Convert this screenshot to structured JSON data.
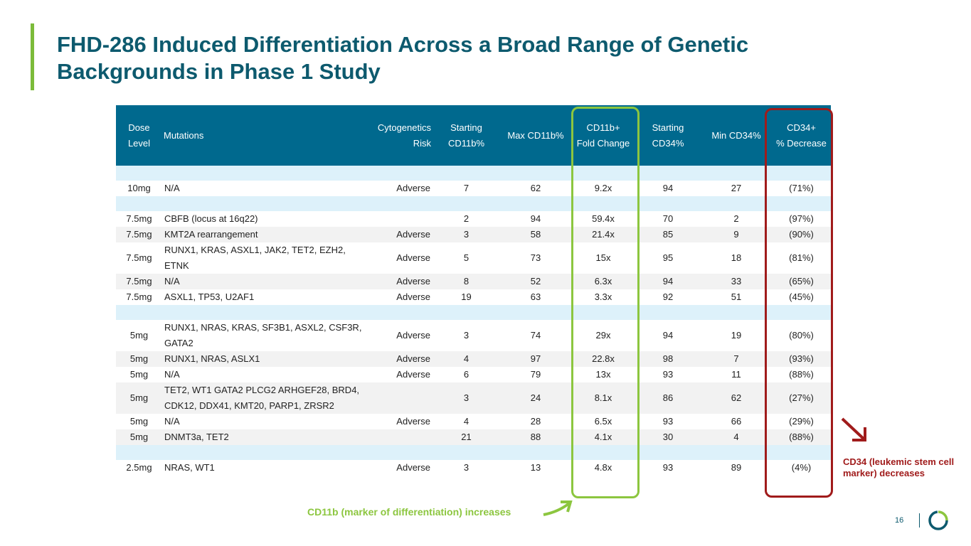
{
  "header": {
    "title": "FHD-286 Induced Differentiation Across a Broad Range of Genetic Backgrounds in Phase 1 Study"
  },
  "table": {
    "columns": [
      "Dose\nLevel",
      "Mutations",
      "Cytogenetics\nRisk",
      "Starting\nCD11b%",
      "Max CD11b%",
      "CD11b+\nFold Change",
      "Starting\nCD34%",
      "Min CD34%",
      "CD34+\n% Decrease"
    ],
    "groups": [
      {
        "rows": [
          [
            "10mg",
            "N/A",
            "Adverse",
            "7",
            "62",
            "9.2x",
            "94",
            "27",
            "(71%)"
          ]
        ]
      },
      {
        "rows": [
          [
            "7.5mg",
            "CBFB (locus at 16q22)",
            "",
            "2",
            "94",
            "59.4x",
            "70",
            "2",
            "(97%)"
          ],
          [
            "7.5mg",
            "KMT2A rearrangement",
            "Adverse",
            "3",
            "58",
            "21.4x",
            "85",
            "9",
            "(90%)"
          ],
          [
            "7.5mg",
            "RUNX1, KRAS, ASXL1, JAK2, TET2, EZH2, ETNK",
            "Adverse",
            "5",
            "73",
            "15x",
            "95",
            "18",
            "(81%)"
          ],
          [
            "7.5mg",
            "N/A",
            "Adverse",
            "8",
            "52",
            "6.3x",
            "94",
            "33",
            "(65%)"
          ],
          [
            "7.5mg",
            "ASXL1, TP53, U2AF1",
            "Adverse",
            "19",
            "63",
            "3.3x",
            "92",
            "51",
            "(45%)"
          ]
        ]
      },
      {
        "rows": [
          [
            "5mg",
            "RUNX1, NRAS, KRAS, SF3B1, ASXL2, CSF3R, GATA2",
            "Adverse",
            "3",
            "74",
            "29x",
            "94",
            "19",
            "(80%)"
          ],
          [
            "5mg",
            "RUNX1, NRAS, ASLX1",
            "Adverse",
            "4",
            "97",
            "22.8x",
            "98",
            "7",
            "(93%)"
          ],
          [
            "5mg",
            "N/A",
            "Adverse",
            "6",
            "79",
            "13x",
            "93",
            "11",
            "(88%)"
          ],
          [
            "5mg",
            "TET2, WT1 GATA2 PLCG2 ARHGEF28, BRD4, CDK12, DDX41, KMT20, PARP1, ZRSR2",
            "",
            "3",
            "24",
            "8.1x",
            "86",
            "62",
            "(27%)"
          ],
          [
            "5mg",
            "N/A",
            "Adverse",
            "4",
            "28",
            "6.5x",
            "93",
            "66",
            "(29%)"
          ],
          [
            "5mg",
            "DNMT3a, TET2",
            "",
            "21",
            "88",
            "4.1x",
            "30",
            "4",
            "(88%)"
          ]
        ]
      },
      {
        "rows": [
          [
            "2.5mg",
            "NRAS, WT1",
            "Adverse",
            "3",
            "13",
            "4.8x",
            "93",
            "89",
            "(4%)"
          ]
        ]
      }
    ]
  },
  "annotations": {
    "cd11b": "CD11b (marker of differentiation) increases",
    "cd34": "CD34 (leukemic stem cell marker) decreases"
  },
  "footer": {
    "page": "16"
  }
}
